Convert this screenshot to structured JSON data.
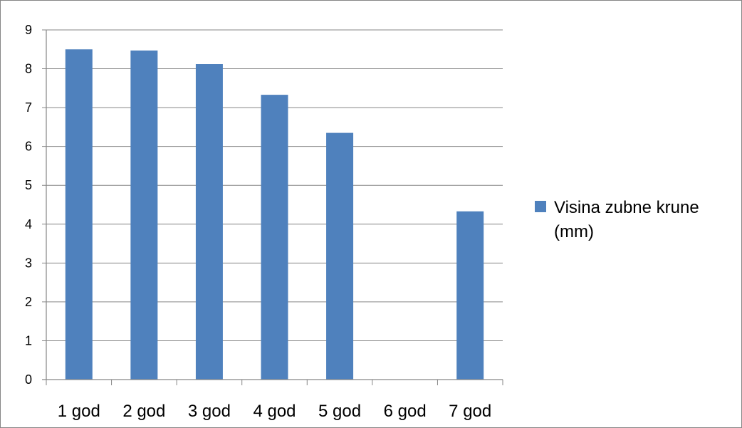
{
  "chart_data": {
    "type": "bar",
    "categories": [
      "1 god",
      "2 god",
      "3 god",
      "4 god",
      "5 god",
      "6 god",
      "7 god"
    ],
    "series": [
      {
        "name": "Visina zubne krune (mm)",
        "values": [
          8.5,
          8.47,
          8.12,
          7.33,
          6.35,
          null,
          4.33
        ],
        "color": "#4F81BD"
      }
    ],
    "yticks": [
      "0",
      "1",
      "2",
      "3",
      "4",
      "5",
      "6",
      "7",
      "8",
      "9"
    ],
    "ylim": [
      0,
      9
    ],
    "title": "",
    "xlabel": "",
    "ylabel": "",
    "grid": true,
    "legend_position": "right",
    "legend_lines": [
      "Visina zubne krune",
      "(mm)"
    ]
  }
}
